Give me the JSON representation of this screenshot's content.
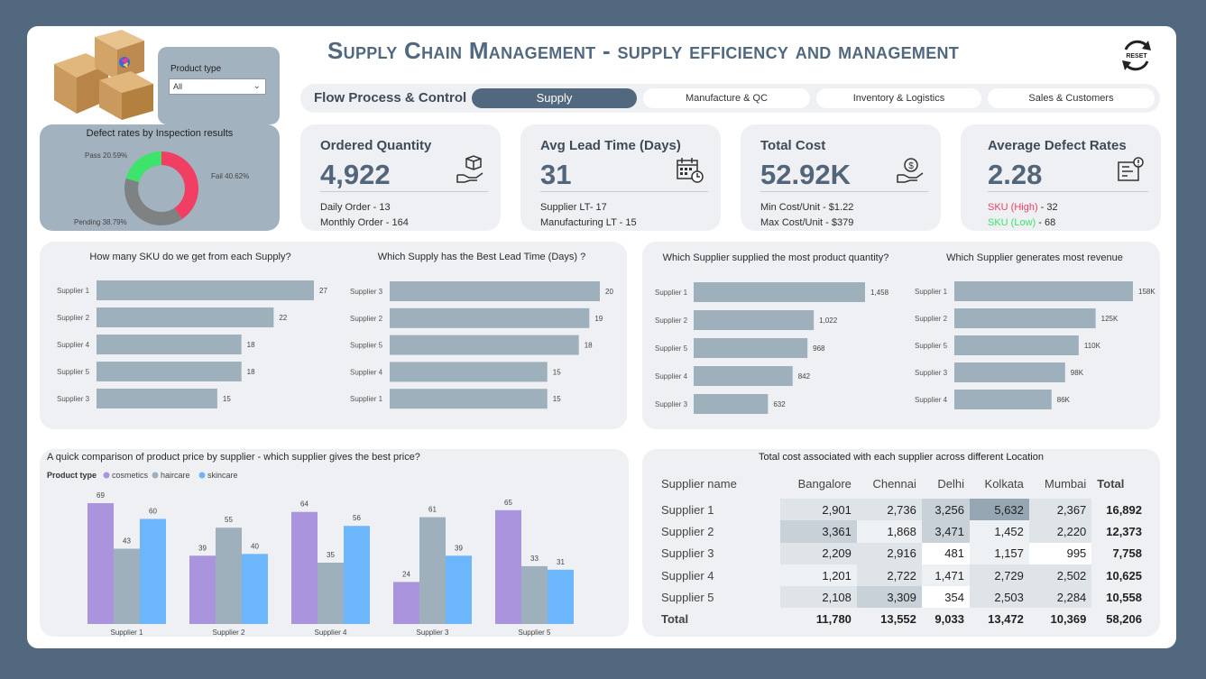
{
  "header": {
    "title": "Supply Chain Management - supply efficiency and management",
    "reset_label": "RESET",
    "nav_label": "Flow Process & Control",
    "tabs": [
      {
        "label": "Supply",
        "active": true
      },
      {
        "label": "Manufacture & QC",
        "active": false
      },
      {
        "label": "Inventory & Logistics",
        "active": false
      },
      {
        "label": "Sales & Customers",
        "active": false
      }
    ]
  },
  "filter": {
    "label": "Product type",
    "value": "All"
  },
  "defect_donut": {
    "title": "Defect rates by Inspection results",
    "labels": {
      "pass": "Pass 20.59%",
      "fail": "Fail 40.62%",
      "pending": "Pending 38.79%"
    },
    "colors": {
      "pass": "#3de36a",
      "fail": "#f03f63",
      "pending": "#7f8283"
    }
  },
  "kpis": [
    {
      "title": "Ordered Quantity",
      "value": "4,922",
      "sub1": "Daily Order - 13",
      "sub2": "Monthly Order - 164",
      "icon": "package-hand-icon"
    },
    {
      "title": "Avg Lead Time (Days)",
      "value": "31",
      "sub1": "Supplier LT- 17",
      "sub2": "Manufacturing LT - 15",
      "icon": "calendar-clock-icon"
    },
    {
      "title": "Total Cost",
      "value": "52.92K",
      "sub1": "Min Cost/Unit - $1.22",
      "sub2": "Max Cost/Unit - $379",
      "icon": "money-hand-icon"
    },
    {
      "title": "Average Defect Rates",
      "value": "2.28",
      "sub1_label": "SKU (High)",
      "sub1_value": " - 32",
      "sub2_label": "SKU (Low)",
      "sub2_value": " - 68",
      "icon": "defect-box-icon"
    }
  ],
  "chart_data": [
    {
      "type": "bar",
      "orientation": "horizontal",
      "title": "How many SKU do we get from each Supply?",
      "categories": [
        "Supplier 1",
        "Supplier 2",
        "Supplier 4",
        "Supplier 5",
        "Supplier 3"
      ],
      "values": [
        27,
        22,
        18,
        18,
        15
      ],
      "labels": [
        "27",
        "22",
        "18",
        "18",
        "15"
      ],
      "xlim": [
        0,
        27
      ]
    },
    {
      "type": "bar",
      "orientation": "horizontal",
      "title": "Which Supply has the Best Lead Time (Days) ?",
      "categories": [
        "Supplier 3",
        "Supplier 2",
        "Supplier 5",
        "Supplier 4",
        "Supplier 1"
      ],
      "values": [
        20,
        19,
        18,
        15,
        15
      ],
      "labels": [
        "20",
        "19",
        "18",
        "15",
        "15"
      ],
      "xlim": [
        0,
        20
      ]
    },
    {
      "type": "bar",
      "orientation": "horizontal",
      "title": "Which Supplier supplied the most product quantity?",
      "categories": [
        "Supplier 1",
        "Supplier 2",
        "Supplier 5",
        "Supplier 4",
        "Supplier 3"
      ],
      "values": [
        1458,
        1022,
        968,
        842,
        632
      ],
      "labels": [
        "1,458",
        "1,022",
        "968",
        "842",
        "632"
      ],
      "xlim": [
        0,
        1458
      ]
    },
    {
      "type": "bar",
      "orientation": "horizontal",
      "title": "Which Supplier generates most revenue",
      "categories": [
        "Supplier 1",
        "Supplier 2",
        "Supplier 5",
        "Supplier 3",
        "Supplier 4"
      ],
      "values": [
        158,
        125,
        110,
        98,
        86
      ],
      "labels": [
        "158K",
        "125K",
        "110K",
        "98K",
        "86K"
      ],
      "xlim": [
        0,
        158
      ]
    },
    {
      "type": "bar",
      "orientation": "vertical",
      "title": "A quick comparison of product price by supplier - which supplier gives the best price?",
      "legend_title": "Product type",
      "categories": [
        "Supplier 1",
        "Supplier 2",
        "Supplier 4",
        "Supplier 3",
        "Supplier 5"
      ],
      "series": [
        {
          "name": "cosmetics",
          "color": "#a994dd",
          "values": [
            69,
            39,
            64,
            24,
            65
          ]
        },
        {
          "name": "haircare",
          "color": "#9fb0bd",
          "values": [
            43,
            55,
            35,
            61,
            33
          ]
        },
        {
          "name": "skincare",
          "color": "#6cb6fb",
          "values": [
            60,
            40,
            56,
            39,
            31
          ]
        }
      ],
      "ylim": [
        0,
        69
      ]
    },
    {
      "type": "table",
      "title": "Total cost associated with each supplier across different Location",
      "columns": [
        "Supplier name",
        "Bangalore",
        "Chennai",
        "Delhi",
        "Kolkata",
        "Mumbai",
        "Total"
      ],
      "rows": [
        [
          "Supplier 1",
          "2,901",
          "2,736",
          "3,256",
          "5,632",
          "2,367",
          "16,892"
        ],
        [
          "Supplier 2",
          "3,361",
          "1,868",
          "3,471",
          "1,452",
          "2,220",
          "12,373"
        ],
        [
          "Supplier 3",
          "2,209",
          "2,916",
          "481",
          "1,157",
          "995",
          "7,758"
        ],
        [
          "Supplier 4",
          "1,201",
          "2,722",
          "1,471",
          "2,729",
          "2,502",
          "10,625"
        ],
        [
          "Supplier 5",
          "2,108",
          "3,309",
          "354",
          "2,503",
          "2,284",
          "10,558"
        ]
      ],
      "total_row": [
        "Total",
        "11,780",
        "13,552",
        "9,033",
        "13,472",
        "10,369",
        "58,206"
      ]
    }
  ],
  "colors": {
    "bar": "#9fb0bd",
    "accent": "#51687f",
    "high": "#f03f63",
    "low": "#3de36a"
  }
}
